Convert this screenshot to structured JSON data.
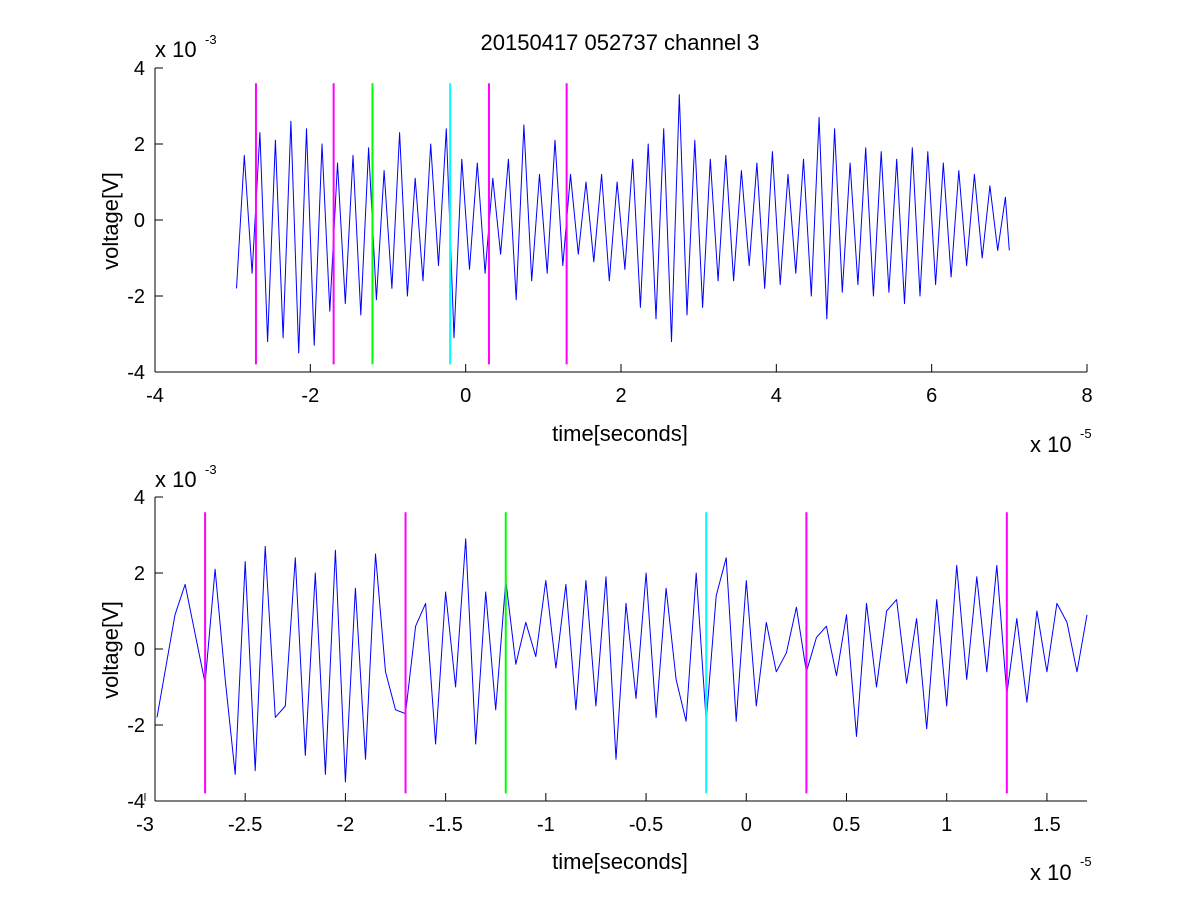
{
  "title": "20150417 052737 channel 3",
  "colors": {
    "signal": "#0000ff",
    "marker_magenta": "#ff00ff",
    "marker_green": "#00ff00",
    "marker_cyan": "#00ffff",
    "axes": "#000000",
    "background": "#ffffff"
  },
  "chart_data": [
    {
      "type": "line",
      "title": "20150417 052737 channel 3",
      "xlabel": "time[seconds]",
      "ylabel": "voltage[V]",
      "x_exponent_label": "x 10",
      "x_exponent": "-5",
      "y_exponent_label": "x 10",
      "y_exponent": "-3",
      "xlim": [
        -4,
        8
      ],
      "ylim": [
        -4,
        4
      ],
      "x_ticks": [
        -4,
        -2,
        0,
        2,
        4,
        6,
        8
      ],
      "x_tick_labels": [
        "-4",
        "-2",
        "0",
        "2",
        "4",
        "6",
        "8"
      ],
      "y_ticks": [
        -4,
        -2,
        0,
        2,
        4
      ],
      "y_tick_labels": [
        "-4",
        "-2",
        "0",
        "2",
        "4"
      ],
      "grid": false,
      "series": [
        {
          "color": "#0000ff",
          "x": [
            -2.95,
            -2.85,
            -2.75,
            -2.65,
            -2.55,
            -2.45,
            -2.35,
            -2.25,
            -2.15,
            -2.05,
            -1.95,
            -1.85,
            -1.75,
            -1.65,
            -1.55,
            -1.45,
            -1.35,
            -1.25,
            -1.15,
            -1.05,
            -0.95,
            -0.85,
            -0.75,
            -0.65,
            -0.55,
            -0.45,
            -0.35,
            -0.25,
            -0.15,
            -0.05,
            0.05,
            0.15,
            0.25,
            0.35,
            0.45,
            0.55,
            0.65,
            0.75,
            0.85,
            0.95,
            1.05,
            1.15,
            1.25,
            1.35,
            1.45,
            1.55,
            1.65,
            1.75,
            1.85,
            1.95,
            2.05,
            2.15,
            2.25,
            2.35,
            2.45,
            2.55,
            2.65,
            2.75,
            2.85,
            2.95,
            3.05,
            3.15,
            3.25,
            3.35,
            3.45,
            3.55,
            3.65,
            3.75,
            3.85,
            3.95,
            4.05,
            4.15,
            4.25,
            4.35,
            4.45,
            4.55,
            4.65,
            4.75,
            4.85,
            4.95,
            5.05,
            5.15,
            5.25,
            5.35,
            5.45,
            5.55,
            5.65,
            5.75,
            5.85,
            5.95,
            6.05,
            6.15,
            6.25,
            6.35,
            6.45,
            6.55,
            6.65,
            6.75,
            6.85,
            6.95,
            7.0
          ],
          "y": [
            -1.8,
            1.7,
            -1.4,
            2.3,
            -3.2,
            2.1,
            -3.1,
            2.6,
            -3.5,
            2.4,
            -3.3,
            2.0,
            -2.4,
            1.5,
            -2.2,
            1.7,
            -2.5,
            1.9,
            -2.1,
            1.3,
            -1.8,
            2.3,
            -2.0,
            1.1,
            -1.6,
            2.0,
            -1.2,
            2.4,
            -3.1,
            1.6,
            -1.3,
            1.5,
            -1.4,
            1.1,
            -0.9,
            1.6,
            -2.1,
            2.5,
            -1.6,
            1.2,
            -1.4,
            2.1,
            -1.2,
            1.2,
            -0.9,
            1.0,
            -1.1,
            1.2,
            -1.6,
            1.0,
            -1.3,
            1.6,
            -2.3,
            2.0,
            -2.6,
            2.4,
            -3.2,
            3.3,
            -2.5,
            2.1,
            -2.3,
            1.6,
            -1.6,
            1.7,
            -1.6,
            1.3,
            -1.2,
            1.5,
            -1.8,
            1.8,
            -1.7,
            1.2,
            -1.4,
            1.6,
            -2.0,
            2.7,
            -2.6,
            2.4,
            -1.9,
            1.5,
            -1.7,
            1.9,
            -2.0,
            1.8,
            -1.9,
            1.6,
            -2.2,
            1.9,
            -2.0,
            1.8,
            -1.7,
            1.5,
            -1.5,
            1.3,
            -1.2,
            1.2,
            -1.0,
            0.9,
            -0.8,
            0.6,
            -0.8
          ]
        }
      ],
      "vertical_markers": [
        {
          "x": -2.7,
          "color": "#ff00ff"
        },
        {
          "x": -1.7,
          "color": "#ff00ff"
        },
        {
          "x": -1.2,
          "color": "#00ff00"
        },
        {
          "x": -0.2,
          "color": "#00ffff"
        },
        {
          "x": 0.3,
          "color": "#ff00ff"
        },
        {
          "x": 1.3,
          "color": "#ff00ff"
        }
      ],
      "marker_ylim": [
        -3.8,
        3.6
      ]
    },
    {
      "type": "line",
      "title": "",
      "xlabel": "time[seconds]",
      "ylabel": "voltage[V]",
      "x_exponent_label": "x 10",
      "x_exponent": "-5",
      "y_exponent_label": "x 10",
      "y_exponent": "-3",
      "xlim": [
        -2.95,
        1.7
      ],
      "ylim": [
        -4,
        4
      ],
      "x_ticks": [
        -3,
        -2.5,
        -2,
        -1.5,
        -1,
        -0.5,
        0,
        0.5,
        1,
        1.5
      ],
      "x_tick_labels": [
        "-3",
        "-2.5",
        "-2",
        "-1.5",
        "-1",
        "-0.5",
        "0",
        "0.5",
        "1",
        "1.5"
      ],
      "y_ticks": [
        -4,
        -2,
        0,
        2,
        4
      ],
      "y_tick_labels": [
        "-4",
        "-2",
        "0",
        "2",
        "4"
      ],
      "grid": false,
      "series": [
        {
          "color": "#0000ff",
          "x": [
            -2.94,
            -2.9,
            -2.85,
            -2.8,
            -2.75,
            -2.7,
            -2.65,
            -2.6,
            -2.55,
            -2.5,
            -2.45,
            -2.4,
            -2.35,
            -2.3,
            -2.25,
            -2.2,
            -2.15,
            -2.1,
            -2.05,
            -2.0,
            -1.95,
            -1.9,
            -1.85,
            -1.8,
            -1.75,
            -1.7,
            -1.65,
            -1.6,
            -1.55,
            -1.5,
            -1.45,
            -1.4,
            -1.35,
            -1.3,
            -1.25,
            -1.2,
            -1.15,
            -1.1,
            -1.05,
            -1.0,
            -0.95,
            -0.9,
            -0.85,
            -0.8,
            -0.75,
            -0.7,
            -0.65,
            -0.6,
            -0.55,
            -0.5,
            -0.45,
            -0.4,
            -0.35,
            -0.3,
            -0.25,
            -0.2,
            -0.15,
            -0.1,
            -0.05,
            0.0,
            0.05,
            0.1,
            0.15,
            0.2,
            0.25,
            0.3,
            0.35,
            0.4,
            0.45,
            0.5,
            0.55,
            0.6,
            0.65,
            0.7,
            0.75,
            0.8,
            0.85,
            0.9,
            0.95,
            1.0,
            1.05,
            1.1,
            1.15,
            1.2,
            1.25,
            1.3,
            1.35,
            1.4,
            1.45,
            1.5,
            1.55,
            1.6,
            1.65,
            1.7
          ],
          "y": [
            -1.8,
            -0.6,
            0.9,
            1.7,
            0.4,
            -0.9,
            2.1,
            -0.8,
            -3.3,
            2.3,
            -3.2,
            2.7,
            -1.8,
            -1.5,
            2.4,
            -2.8,
            2.0,
            -3.3,
            2.6,
            -3.5,
            1.6,
            -2.9,
            2.5,
            -0.6,
            -1.6,
            -1.7,
            0.6,
            1.2,
            -2.5,
            1.5,
            -1.0,
            2.9,
            -2.5,
            1.5,
            -1.6,
            1.8,
            -0.4,
            0.7,
            -0.2,
            1.8,
            -0.5,
            1.7,
            -1.6,
            1.8,
            -1.5,
            1.9,
            -2.9,
            1.2,
            -1.3,
            2.0,
            -1.8,
            1.6,
            -0.8,
            -1.9,
            2.0,
            -1.9,
            1.4,
            2.4,
            -1.9,
            1.8,
            -1.5,
            0.7,
            -0.6,
            -0.1,
            1.1,
            -0.6,
            0.3,
            0.6,
            -0.7,
            0.9,
            -2.3,
            1.2,
            -1.0,
            1.0,
            1.3,
            -0.9,
            0.8,
            -2.1,
            1.3,
            -1.5,
            2.2,
            -0.8,
            1.9,
            -0.6,
            2.2,
            -1.2,
            0.8,
            -1.4,
            1.0,
            -0.6,
            1.2,
            0.7,
            -0.6,
            0.9
          ]
        }
      ],
      "vertical_markers": [
        {
          "x": -2.7,
          "color": "#ff00ff"
        },
        {
          "x": -1.7,
          "color": "#ff00ff"
        },
        {
          "x": -1.2,
          "color": "#00ff00"
        },
        {
          "x": -0.2,
          "color": "#00ffff"
        },
        {
          "x": 0.3,
          "color": "#ff00ff"
        },
        {
          "x": 1.3,
          "color": "#ff00ff"
        }
      ],
      "marker_ylim": [
        -3.8,
        3.6
      ]
    }
  ]
}
